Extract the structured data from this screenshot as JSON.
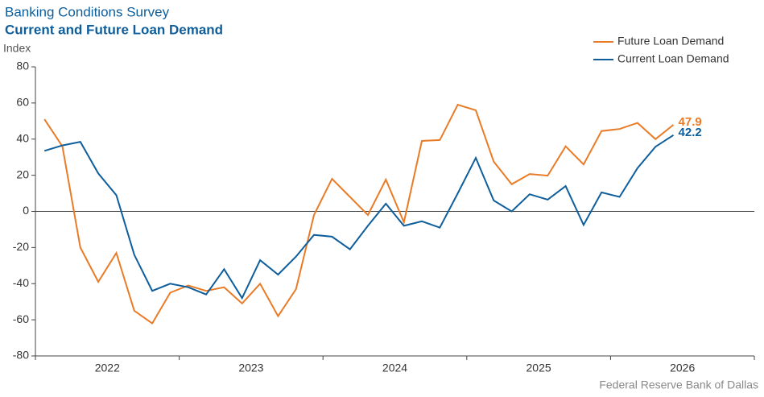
{
  "chart_data": {
    "type": "line",
    "supertitle": "Banking Conditions Survey",
    "title": "Current and Future Loan Demand",
    "y_label": "Index",
    "source": "Federal Reserve Bank of Dallas",
    "x_labels": [
      "2022",
      "2023",
      "2024",
      "2025",
      "2026"
    ],
    "points_per_label": 8,
    "ylim": [
      -80,
      80
    ],
    "yticks": [
      -80,
      -60,
      -40,
      -20,
      0,
      20,
      40,
      60,
      80
    ],
    "legend": "top-right",
    "series": [
      {
        "name": "Future Loan Demand",
        "color": "#ea7b26",
        "values": [
          51,
          36,
          -20,
          -39,
          -23,
          -55,
          -62,
          -45,
          -41,
          -44,
          -42,
          -51,
          -40,
          -58,
          -43,
          -2,
          18,
          8,
          -2,
          17.6,
          -6,
          39,
          39.5,
          59,
          56,
          27.5,
          15,
          20.7,
          19.8,
          36,
          26,
          44.5,
          45.6,
          49,
          40,
          47.9
        ]
      },
      {
        "name": "Current Loan Demand",
        "color": "#0e5e9b",
        "values": [
          33.5,
          36.5,
          38.5,
          21,
          9,
          -24,
          -44,
          -40,
          -42,
          -46,
          -32,
          -48,
          -27,
          -35,
          -25,
          -13,
          -14,
          -21,
          -8,
          4.3,
          -8,
          -5.5,
          -9,
          10,
          29.6,
          6,
          0,
          9.5,
          6.5,
          14,
          -7.5,
          10.5,
          8,
          24,
          35.8,
          42.2
        ]
      }
    ]
  }
}
